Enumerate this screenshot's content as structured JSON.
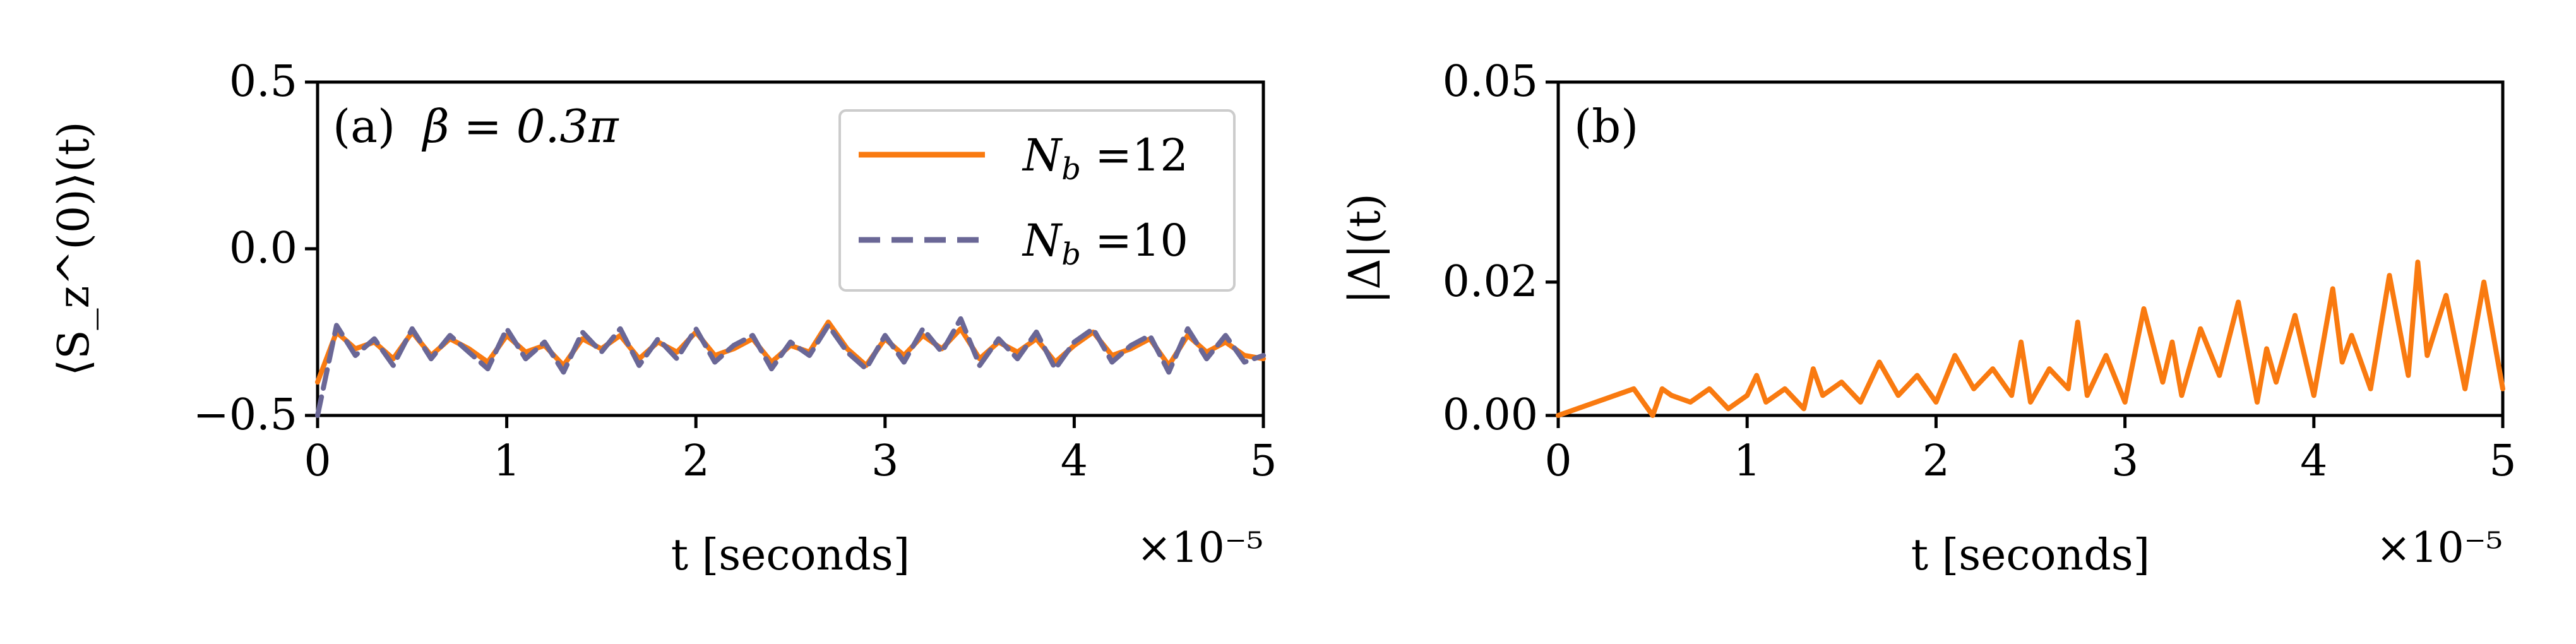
{
  "colors": {
    "orange": "#f97a10",
    "purple": "#6a6796"
  },
  "chart_data": [
    {
      "type": "line",
      "panel_label": "(a)",
      "annotation": "β = 0.3π",
      "xlabel": "t [seconds]",
      "ylabel": "⟨S_z^(0)⟩(t)",
      "x_offset_text": "×10⁻⁵",
      "x_scale": 1e-05,
      "xlim": [
        0,
        5
      ],
      "ylim": [
        -0.5,
        0.5
      ],
      "x_ticks": [
        "0",
        "1",
        "2",
        "3",
        "4",
        "5"
      ],
      "y_ticks": [
        "−0.5",
        "0.0",
        "0.5"
      ],
      "y_tick_values": [
        -0.5,
        0.0,
        0.5
      ],
      "legend_position": "upper-right",
      "series": [
        {
          "name": "N_b =12",
          "legend_label": "N",
          "legend_sub": "b",
          "legend_value": " =12",
          "color": "#f97a10",
          "dash": "solid",
          "x": [
            0.0,
            0.1,
            0.2,
            0.3,
            0.4,
            0.5,
            0.6,
            0.7,
            0.8,
            0.9,
            1.0,
            1.1,
            1.2,
            1.3,
            1.4,
            1.5,
            1.6,
            1.7,
            1.8,
            1.9,
            2.0,
            2.1,
            2.2,
            2.3,
            2.4,
            2.5,
            2.6,
            2.7,
            2.8,
            2.9,
            3.0,
            3.1,
            3.2,
            3.3,
            3.4,
            3.5,
            3.6,
            3.7,
            3.8,
            3.9,
            4.0,
            4.1,
            4.2,
            4.3,
            4.4,
            4.5,
            4.6,
            4.7,
            4.8,
            4.9,
            5.0
          ],
          "values": [
            -0.4,
            -0.25,
            -0.3,
            -0.28,
            -0.33,
            -0.25,
            -0.32,
            -0.27,
            -0.3,
            -0.34,
            -0.26,
            -0.31,
            -0.29,
            -0.35,
            -0.27,
            -0.3,
            -0.26,
            -0.33,
            -0.28,
            -0.31,
            -0.25,
            -0.32,
            -0.3,
            -0.27,
            -0.34,
            -0.29,
            -0.31,
            -0.22,
            -0.3,
            -0.35,
            -0.27,
            -0.32,
            -0.26,
            -0.3,
            -0.24,
            -0.33,
            -0.28,
            -0.31,
            -0.27,
            -0.34,
            -0.29,
            -0.25,
            -0.32,
            -0.3,
            -0.27,
            -0.35,
            -0.26,
            -0.31,
            -0.28,
            -0.32,
            -0.33
          ]
        },
        {
          "name": "N_b =10",
          "legend_label": "N",
          "legend_sub": "b",
          "legend_value": " =10",
          "color": "#6a6796",
          "dash": "dashed",
          "x": [
            0.0,
            0.1,
            0.2,
            0.3,
            0.4,
            0.5,
            0.6,
            0.7,
            0.8,
            0.9,
            1.0,
            1.1,
            1.2,
            1.3,
            1.4,
            1.5,
            1.6,
            1.7,
            1.8,
            1.9,
            2.0,
            2.1,
            2.2,
            2.3,
            2.4,
            2.5,
            2.6,
            2.7,
            2.8,
            2.9,
            3.0,
            3.1,
            3.2,
            3.3,
            3.4,
            3.5,
            3.6,
            3.7,
            3.8,
            3.9,
            4.0,
            4.1,
            4.2,
            4.3,
            4.4,
            4.5,
            4.6,
            4.7,
            4.8,
            4.9,
            5.0
          ],
          "values": [
            -0.5,
            -0.23,
            -0.32,
            -0.27,
            -0.35,
            -0.24,
            -0.33,
            -0.26,
            -0.31,
            -0.36,
            -0.24,
            -0.33,
            -0.28,
            -0.37,
            -0.25,
            -0.31,
            -0.24,
            -0.35,
            -0.27,
            -0.33,
            -0.24,
            -0.34,
            -0.29,
            -0.26,
            -0.36,
            -0.28,
            -0.32,
            -0.23,
            -0.31,
            -0.36,
            -0.26,
            -0.34,
            -0.24,
            -0.31,
            -0.21,
            -0.35,
            -0.27,
            -0.33,
            -0.25,
            -0.36,
            -0.28,
            -0.24,
            -0.34,
            -0.29,
            -0.26,
            -0.37,
            -0.24,
            -0.33,
            -0.26,
            -0.34,
            -0.32
          ]
        }
      ]
    },
    {
      "type": "line",
      "panel_label": "(b)",
      "xlabel": "t [seconds]",
      "ylabel": "|Δ|(t)",
      "x_offset_text": "×10⁻⁵",
      "x_scale": 1e-05,
      "xlim": [
        0,
        5
      ],
      "ylim": [
        0,
        0.05
      ],
      "x_ticks": [
        "0",
        "1",
        "2",
        "3",
        "4",
        "5"
      ],
      "y_ticks": [
        "0.00",
        "0.02",
        "0.05"
      ],
      "y_tick_values": [
        0.0,
        0.02,
        0.05
      ],
      "series": [
        {
          "color": "#f97a10",
          "dash": "solid",
          "x": [
            0.0,
            0.1,
            0.2,
            0.3,
            0.4,
            0.45,
            0.5,
            0.55,
            0.6,
            0.7,
            0.8,
            0.9,
            1.0,
            1.05,
            1.1,
            1.2,
            1.3,
            1.35,
            1.4,
            1.5,
            1.6,
            1.7,
            1.8,
            1.9,
            2.0,
            2.1,
            2.2,
            2.3,
            2.4,
            2.45,
            2.5,
            2.6,
            2.7,
            2.75,
            2.8,
            2.9,
            3.0,
            3.1,
            3.2,
            3.25,
            3.3,
            3.4,
            3.5,
            3.6,
            3.7,
            3.75,
            3.8,
            3.9,
            4.0,
            4.1,
            4.15,
            4.2,
            4.3,
            4.4,
            4.5,
            4.55,
            4.6,
            4.7,
            4.8,
            4.9,
            5.0
          ],
          "values": [
            0.0,
            0.001,
            0.002,
            0.003,
            0.004,
            0.002,
            0.0,
            0.004,
            0.003,
            0.002,
            0.004,
            0.001,
            0.003,
            0.006,
            0.002,
            0.004,
            0.001,
            0.007,
            0.003,
            0.005,
            0.002,
            0.008,
            0.003,
            0.006,
            0.002,
            0.009,
            0.004,
            0.007,
            0.003,
            0.011,
            0.002,
            0.007,
            0.004,
            0.014,
            0.003,
            0.009,
            0.002,
            0.016,
            0.005,
            0.011,
            0.003,
            0.013,
            0.006,
            0.017,
            0.002,
            0.01,
            0.005,
            0.015,
            0.003,
            0.019,
            0.008,
            0.012,
            0.004,
            0.021,
            0.006,
            0.023,
            0.009,
            0.018,
            0.004,
            0.02,
            0.004
          ]
        }
      ]
    }
  ]
}
